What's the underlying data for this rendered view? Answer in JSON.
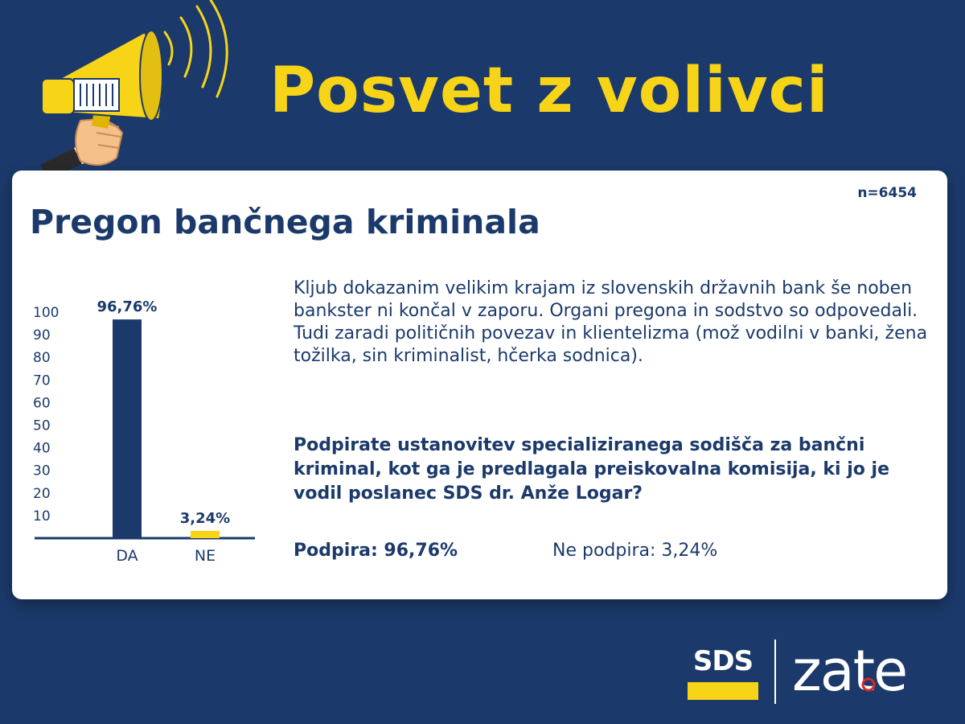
{
  "header": {
    "title": "Posvet z volivci"
  },
  "card": {
    "sample_size": "n=6454",
    "title": "Pregon bančnega kriminala",
    "body": "Kljub dokazanim velikim krajam iz slovenskih državnih bank še noben bankster ni končal v zaporu. Organi pregona in sodstvo so odpovedali. Tudi zaradi političnih povezav in klientelizma (mož vodilni v banki, žena tožilka, sin kriminalist, hčerka sodnica).",
    "question": "Podpirate ustanovitev specializiranega sodišča za bančni kriminal, kot ga je  predlagala preiskovalna komisija, ki jo je vodil poslanec  SDS dr. Anže Logar?",
    "result_yes": "Podpira: 96,76%",
    "result_no": "Ne podpira: 3,24%"
  },
  "chart_data": {
    "type": "bar",
    "categories": [
      "DA",
      "NE"
    ],
    "values": [
      96.76,
      3.24
    ],
    "value_labels": [
      "96,76%",
      "3,24%"
    ],
    "yticks": [
      10,
      20,
      30,
      40,
      50,
      60,
      70,
      80,
      90,
      100
    ],
    "ylim": [
      0,
      100
    ],
    "colors": [
      "#1b3a6b",
      "#f7d417"
    ],
    "grid": false,
    "legend": "none"
  },
  "logo": {
    "left": "SDS",
    "right": "zate"
  },
  "colors": {
    "background": "#1b3a6b",
    "accent": "#f7d417",
    "card": "#ffffff",
    "text": "#1b3a6b"
  },
  "icons": {
    "megaphone": "megaphone-icon"
  }
}
